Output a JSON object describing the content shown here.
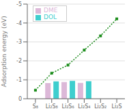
{
  "chart_data": {
    "type": "bar",
    "categories": [
      "S₈",
      "Li₂S₈",
      "Li₂S₆",
      "Li₂S₄",
      "Li₂S₂",
      "Li₂S"
    ],
    "ylabel": "Adsorption energy (eV)",
    "ylim": [
      0,
      -5
    ],
    "yticks": [
      0,
      -1,
      -2,
      -3,
      -4,
      -5
    ],
    "grid": true,
    "legend": "upper left",
    "series": [
      {
        "name": "DME",
        "type": "bar",
        "color": "#dcb8d8",
        "values": [
          null,
          -0.83,
          -0.88,
          -0.84,
          null,
          null
        ]
      },
      {
        "name": "DOL",
        "type": "bar",
        "color": "#3ecece",
        "values": [
          null,
          -0.92,
          -0.94,
          -0.93,
          null,
          null
        ]
      },
      {
        "type": "line",
        "color": "#1a8c1a",
        "line_style": "dotted",
        "marker": "square",
        "values": [
          -0.45,
          -1.35,
          -1.78,
          -2.57,
          -3.32,
          -4.22
        ]
      }
    ]
  }
}
